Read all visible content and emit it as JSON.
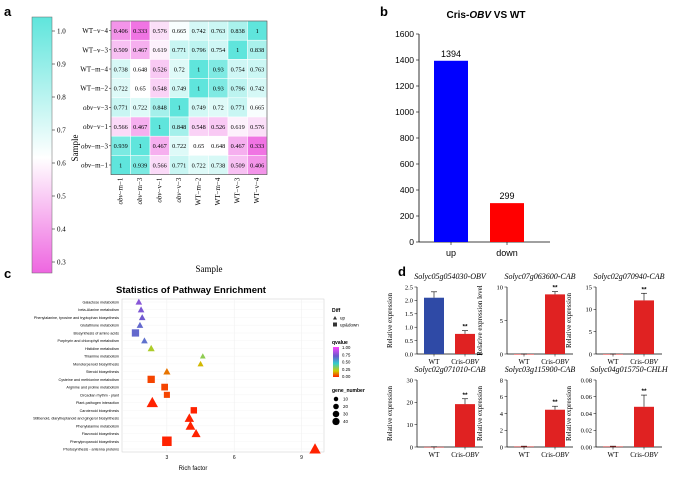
{
  "panel_labels": {
    "a": "a",
    "b": "b",
    "c": "c",
    "d": "d"
  },
  "heatmap": {
    "ylabel": "Sample",
    "xlabel": "Sample",
    "rows": [
      "WT−v−4",
      "WT−v−3",
      "WT−m−4",
      "WT−m−2",
      "obv−v−3",
      "obv−v−1",
      "obv−m−3",
      "obv−m−1"
    ],
    "cols": [
      "obv−m−1",
      "obv−m−3",
      "obv−v−1",
      "obv−v−3",
      "WT−m−2",
      "WT−m−4",
      "WT−v−3",
      "WT−v−4"
    ],
    "values": [
      [
        "0.406",
        "0.333",
        "0.576",
        "0.665",
        "0.742",
        "0.763",
        "0.838",
        "1"
      ],
      [
        "0.509",
        "0.467",
        "0.619",
        "0.771",
        "0.796",
        "0.754",
        "1",
        "0.838"
      ],
      [
        "0.738",
        "0.648",
        "0.526",
        "0.72",
        "1",
        "0.93",
        "0.754",
        "0.763"
      ],
      [
        "0.722",
        "0.65",
        "0.548",
        "0.749",
        "1",
        "0.93",
        "0.796",
        "0.742"
      ],
      [
        "0.771",
        "0.722",
        "0.848",
        "1",
        "0.749",
        "0.72",
        "0.771",
        "0.665"
      ],
      [
        "0.566",
        "0.467",
        "1",
        "0.848",
        "0.548",
        "0.526",
        "0.619",
        "0.576"
      ],
      [
        "0.939",
        "1",
        "0.467",
        "0.722",
        "0.65",
        "0.648",
        "0.467",
        "0.333"
      ],
      [
        "1",
        "0.939",
        "0.566",
        "0.771",
        "0.722",
        "0.738",
        "0.509",
        "0.406"
      ]
    ],
    "scale_ticks": [
      "1.0",
      "0.9",
      "0.8",
      "0.7",
      "0.6",
      "0.5",
      "0.4",
      "0.3"
    ],
    "color_low": "#ee66e0",
    "color_high": "#5fe5dc"
  },
  "bar_b": {
    "title": "Cris-OBV VS WT",
    "categories": [
      "up",
      "down"
    ],
    "values": [
      1394,
      299
    ],
    "labels": [
      "1394",
      "299"
    ],
    "colors": [
      "#0000ff",
      "#ff0000"
    ],
    "ylim": [
      0,
      1600
    ],
    "yticks": [
      "0",
      "200",
      "400",
      "600",
      "800",
      "1000",
      "1200",
      "1400",
      "1600"
    ]
  },
  "chart_data": {
    "type": "scatter",
    "title": "Statistics of Pathway Enrichment",
    "xlabel": "Rich factor",
    "xticks": [
      "3",
      "6",
      "9"
    ],
    "xlim": [
      1,
      10
    ],
    "legend_diff_title": "Diff",
    "legend_diff": [
      "up",
      "up&down"
    ],
    "legend_q_title": "qvalue",
    "legend_q_ticks": [
      "1.00",
      "0.75",
      "0.50",
      "0.25",
      "0.00"
    ],
    "legend_size_title": "gene_number",
    "legend_size": [
      "10",
      "20",
      "30",
      "40"
    ],
    "pathways": [
      {
        "name": "Galactose metabolism",
        "x": 1.75,
        "q": 0.8,
        "n": 8,
        "shape": "up"
      },
      {
        "name": "beta-Alanine metabolism",
        "x": 1.85,
        "q": 0.78,
        "n": 8,
        "shape": "up"
      },
      {
        "name": "Phenylalanine, tyrosine and tryptophan biosynthesis",
        "x": 1.9,
        "q": 0.76,
        "n": 8,
        "shape": "up"
      },
      {
        "name": "Glutathione metabolism",
        "x": 1.8,
        "q": 0.72,
        "n": 8,
        "shape": "up"
      },
      {
        "name": "Biosynthesis of amino acids",
        "x": 1.6,
        "q": 0.72,
        "n": 20,
        "shape": "both"
      },
      {
        "name": "Porphyrin and chlorophyll metabolism",
        "x": 2.0,
        "q": 0.7,
        "n": 8,
        "shape": "up"
      },
      {
        "name": "Histidine metabolism",
        "x": 2.3,
        "q": 0.3,
        "n": 10,
        "shape": "up"
      },
      {
        "name": "Thiamine metabolism",
        "x": 4.6,
        "q": 0.35,
        "n": 5,
        "shape": "up"
      },
      {
        "name": "Monoterpenoid biosynthesis",
        "x": 4.5,
        "q": 0.22,
        "n": 6,
        "shape": "up"
      },
      {
        "name": "Steroid biosynthesis",
        "x": 3.0,
        "q": 0.12,
        "n": 10,
        "shape": "up"
      },
      {
        "name": "Cysteine and methionine metabolism",
        "x": 2.3,
        "q": 0.05,
        "n": 20,
        "shape": "both"
      },
      {
        "name": "Arginine and proline metabolism",
        "x": 2.9,
        "q": 0.05,
        "n": 16,
        "shape": "both"
      },
      {
        "name": "Circadian rhythm - plant",
        "x": 3.0,
        "q": 0.05,
        "n": 12,
        "shape": "both"
      },
      {
        "name": "Plant-pathogen interaction",
        "x": 2.35,
        "q": 0.0,
        "n": 36,
        "shape": "up"
      },
      {
        "name": "Carotenoid biosynthesis",
        "x": 4.2,
        "q": 0.0,
        "n": 14,
        "shape": "both"
      },
      {
        "name": "Stilbenoid, diarylheptanoid and gingerol biosynthesis",
        "x": 4.0,
        "q": 0.0,
        "n": 22,
        "shape": "up"
      },
      {
        "name": "Phenylalanine metabolism",
        "x": 4.05,
        "q": 0.0,
        "n": 24,
        "shape": "up"
      },
      {
        "name": "Flavonoid biosynthesis",
        "x": 4.3,
        "q": 0.0,
        "n": 20,
        "shape": "up"
      },
      {
        "name": "Phenylpropanoid biosynthesis",
        "x": 3.0,
        "q": 0.0,
        "n": 40,
        "shape": "both"
      },
      {
        "name": "Photosynthesis - antenna proteins",
        "x": 9.6,
        "q": 0.0,
        "n": 36,
        "shape": "up"
      }
    ]
  },
  "expr": {
    "ylabel_main": "Relative expression",
    "ylabel_alt": "Relative expression level",
    "cat_wt": "WT",
    "cat_cris": "Cris-",
    "cat_obv": "OBV",
    "sig": "**",
    "panels": [
      {
        "title": "Solyc05g054030-OBV",
        "ylabel": "Relative expression",
        "values": [
          2.1,
          0.75
        ],
        "errors": [
          0.22,
          0.12
        ],
        "ylim": [
          0,
          2.5
        ],
        "yticks": [
          "0.0",
          "0.5",
          "1.0",
          "1.5",
          "2.0",
          "2.5"
        ],
        "colors": [
          "#2f4aa6",
          "#e02222"
        ]
      },
      {
        "title": "Solyc07g063600-CAB",
        "ylabel": "Relative expression level",
        "values": [
          0,
          8.9
        ],
        "errors": [
          0,
          0.4
        ],
        "ylim": [
          0,
          10
        ],
        "yticks": [
          "0",
          "5",
          "10"
        ],
        "colors": [
          "#e02222",
          "#e02222"
        ]
      },
      {
        "title": "Solyc02g070940-CAB",
        "ylabel": "Relative expression",
        "values": [
          0,
          12
        ],
        "errors": [
          0,
          1.6
        ],
        "ylim": [
          0,
          15
        ],
        "yticks": [
          "0",
          "5",
          "10",
          "15"
        ],
        "colors": [
          "#e02222",
          "#e02222"
        ]
      },
      {
        "title": "Solyc02g071010-CAB",
        "ylabel": "Relative expression",
        "values": [
          0.05,
          19.2
        ],
        "errors": [
          0.05,
          2.4
        ],
        "ylim": [
          0,
          30
        ],
        "yticks": [
          "0",
          "10",
          "20",
          "30"
        ],
        "colors": [
          "#e02222",
          "#e02222"
        ]
      },
      {
        "title": "Solyc03g115900-CAB",
        "ylabel": "Relative expression",
        "values": [
          0.05,
          4.45
        ],
        "errors": [
          0.05,
          0.42
        ],
        "ylim": [
          0,
          8
        ],
        "yticks": [
          "0",
          "2",
          "4",
          "6",
          "8"
        ],
        "colors": [
          "#e02222",
          "#e02222"
        ]
      },
      {
        "title": "Solyc04g015750-CHLH",
        "ylabel": "Relative expression",
        "values": [
          0.0005,
          0.048
        ],
        "errors": [
          0.0005,
          0.014
        ],
        "ylim": [
          0,
          0.08
        ],
        "yticks": [
          "0.00",
          "0.02",
          "0.04",
          "0.06",
          "0.08"
        ],
        "colors": [
          "#e02222",
          "#e02222"
        ]
      }
    ]
  }
}
